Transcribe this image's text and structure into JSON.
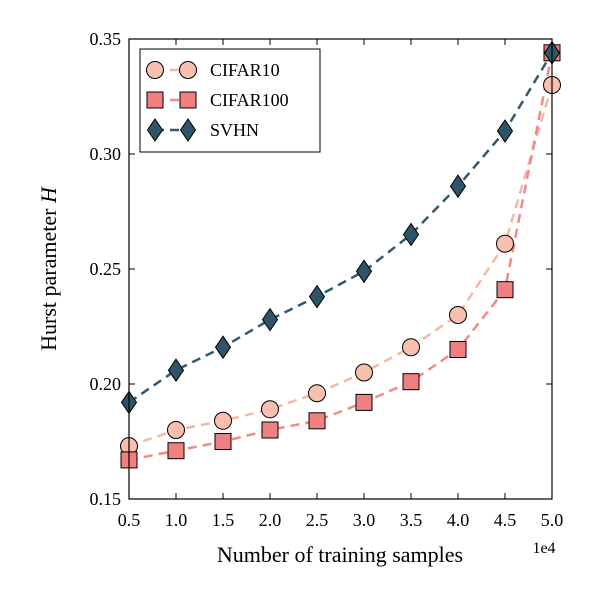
{
  "chart_data": {
    "type": "line",
    "xlabel": "Number of training samples",
    "ylabel": "Hurst parameter",
    "ylabel_symbol": "H",
    "x_offset_label": "1e4",
    "xlim": [
      0.5,
      5.0
    ],
    "ylim": [
      0.15,
      0.35
    ],
    "xticks": [
      "0.5",
      "1.0",
      "1.5",
      "2.0",
      "2.5",
      "3.0",
      "3.5",
      "4.0",
      "4.5",
      "5.0"
    ],
    "yticks": [
      "0.15",
      "0.20",
      "0.25",
      "0.30",
      "0.35"
    ],
    "x": [
      0.5,
      1.0,
      1.5,
      2.0,
      2.5,
      3.0,
      3.5,
      4.0,
      4.5,
      5.0
    ],
    "grid": false,
    "legend_position": "top-left",
    "series": [
      {
        "name": "CIFAR10",
        "marker": "circle",
        "line_color": "#f4b8a6",
        "marker_fill": "#f8bfae",
        "values": [
          0.173,
          0.18,
          0.184,
          0.189,
          0.196,
          0.205,
          0.216,
          0.23,
          0.261,
          0.33
        ]
      },
      {
        "name": "CIFAR100",
        "marker": "square",
        "line_color": "#ef8a87",
        "marker_fill": "#f08080",
        "values": [
          0.167,
          0.171,
          0.175,
          0.18,
          0.184,
          0.192,
          0.201,
          0.215,
          0.241,
          0.344
        ]
      },
      {
        "name": "SVHN",
        "marker": "diamond",
        "line_color": "#35586b",
        "marker_fill": "#2f5468",
        "values": [
          0.192,
          0.206,
          0.216,
          0.228,
          0.238,
          0.249,
          0.265,
          0.286,
          0.31,
          0.344
        ]
      }
    ]
  }
}
